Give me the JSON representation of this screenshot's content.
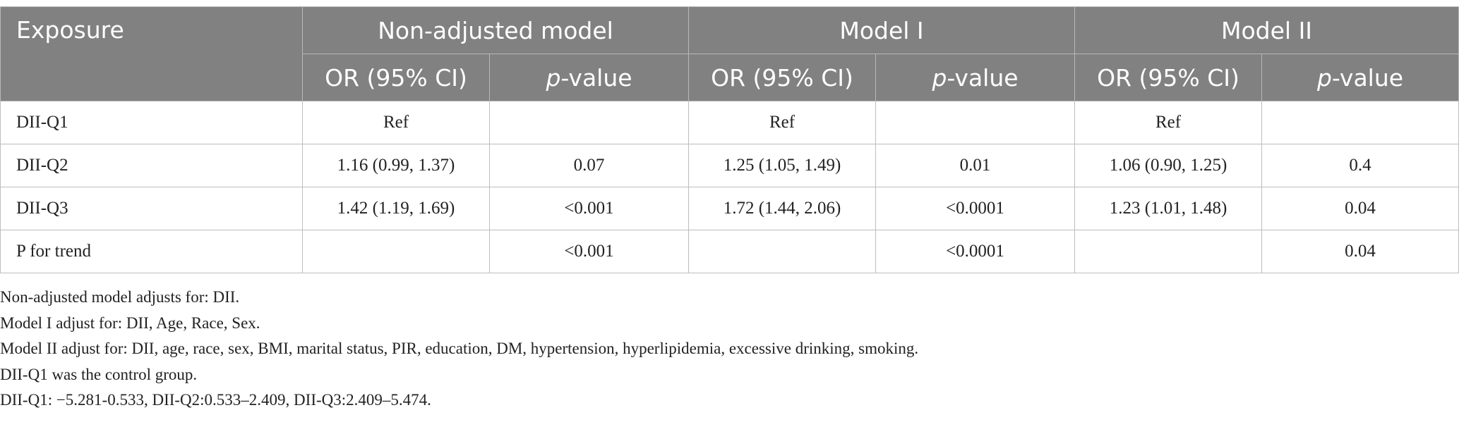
{
  "table": {
    "header": {
      "exposure": "Exposure",
      "groups": [
        "Non-adjusted model",
        "Model I",
        "Model II"
      ],
      "sub": {
        "or": "OR (95% CI)",
        "p_italic": "p",
        "p_rest": "-value"
      }
    },
    "rows": [
      {
        "label": "DII-Q1",
        "cells": [
          "Ref",
          "",
          "Ref",
          "",
          "Ref",
          ""
        ]
      },
      {
        "label": "DII-Q2",
        "cells": [
          "1.16 (0.99, 1.37)",
          "0.07",
          "1.25 (1.05, 1.49)",
          "0.01",
          "1.06 (0.90, 1.25)",
          "0.4"
        ]
      },
      {
        "label": "DII-Q3",
        "cells": [
          "1.42 (1.19, 1.69)",
          "<0.001",
          "1.72 (1.44, 2.06)",
          "<0.0001",
          "1.23 (1.01, 1.48)",
          "0.04"
        ]
      },
      {
        "label": "P for trend",
        "cells": [
          "",
          "<0.001",
          "",
          "<0.0001",
          "",
          "0.04"
        ]
      }
    ]
  },
  "notes": [
    "Non-adjusted model adjusts for: DII.",
    "Model I adjust for: DII, Age, Race, Sex.",
    "Model II adjust for: DII, age, race, sex, BMI, marital status, PIR, education, DM, hypertension, hyperlipidemia, excessive drinking, smoking.",
    "DII-Q1 was the control group.",
    "DII-Q1: −5.281-0.533, DII-Q2:0.533–2.409, DII-Q3:2.409–5.474."
  ]
}
